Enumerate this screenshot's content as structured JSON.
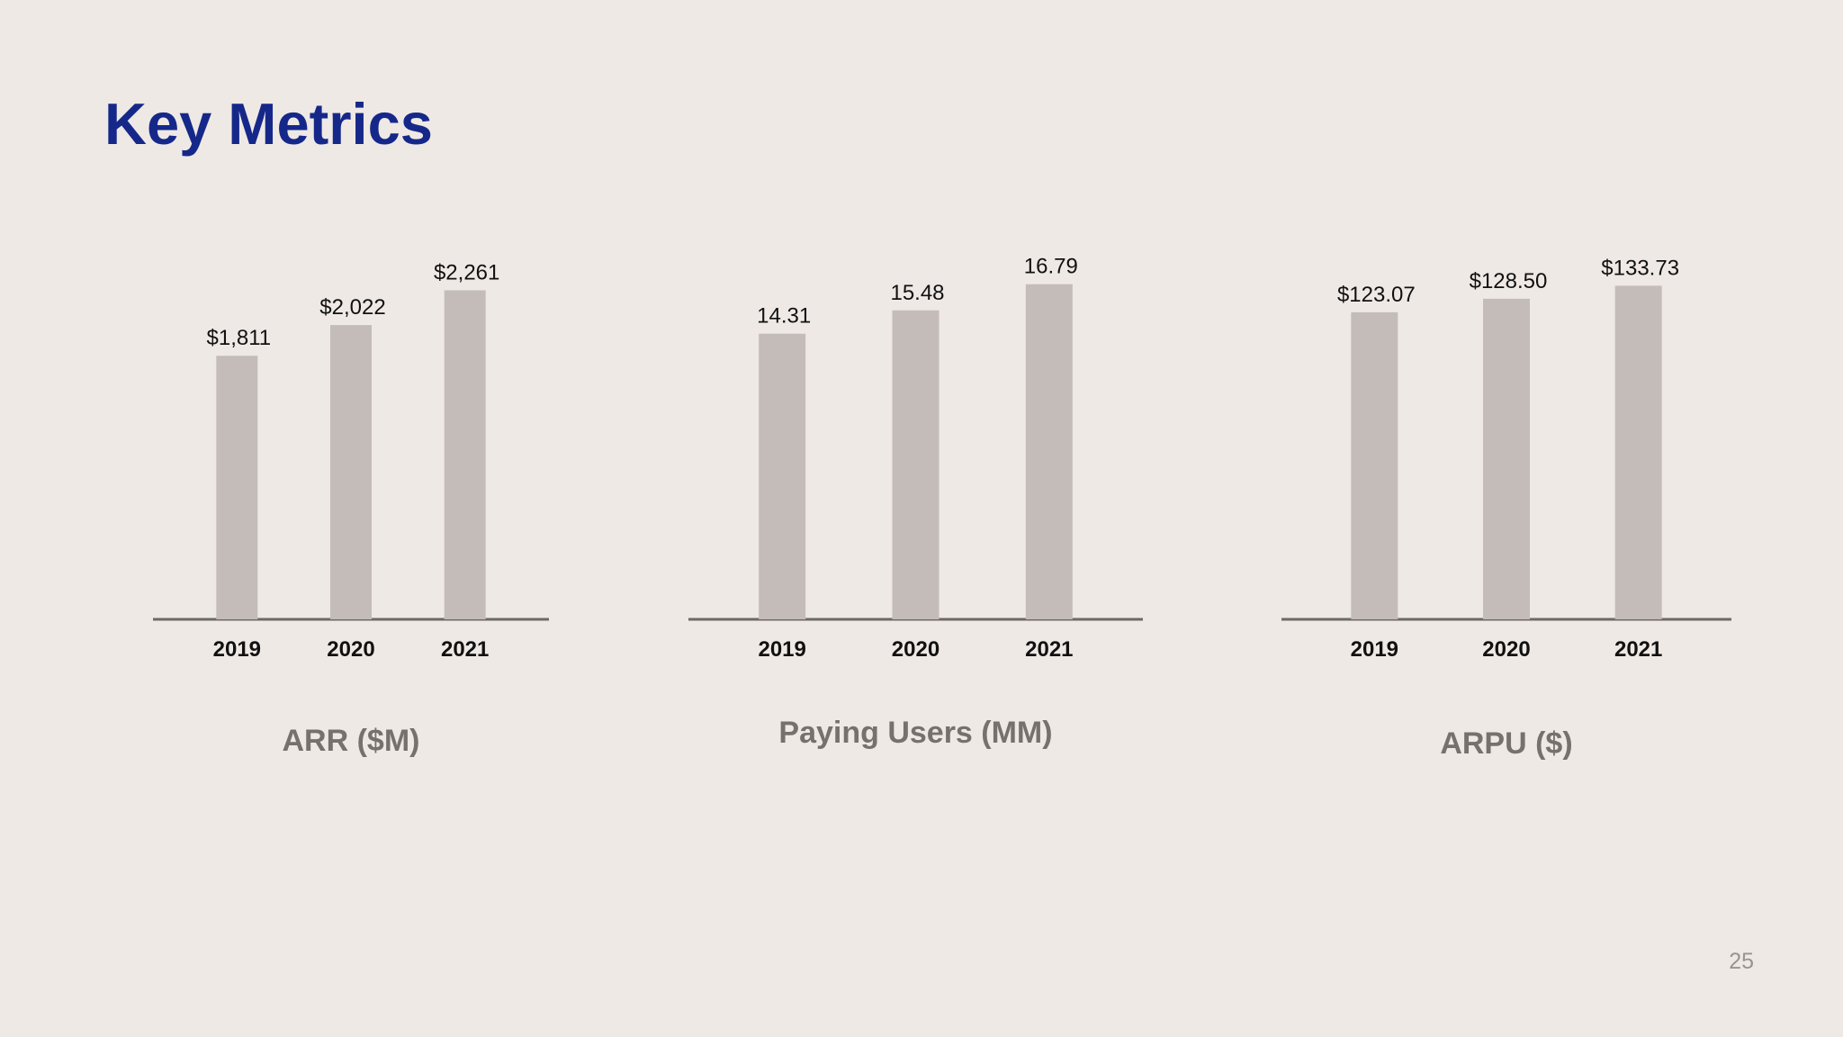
{
  "page": {
    "title": "Key Metrics",
    "page_number": "25"
  },
  "colors": {
    "title": "#15288a",
    "bar": "#c4bcb8",
    "axis": "#6f6965",
    "label": "#111111",
    "chart_title": "#77716d",
    "background": "#efe9e5"
  },
  "chart_data": [
    {
      "type": "bar",
      "title": "ARR ($M)",
      "categories": [
        "2019",
        "2020",
        "2021"
      ],
      "values": [
        1811,
        2022,
        2261
      ],
      "value_labels": [
        "$1,811",
        "$2,022",
        "$2,261"
      ],
      "xlabel": "",
      "ylabel": "",
      "ylim": [
        0,
        2400
      ],
      "grid": false,
      "legend": "none"
    },
    {
      "type": "bar",
      "title": "Paying Users (MM)",
      "categories": [
        "2019",
        "2020",
        "2021"
      ],
      "values": [
        14.31,
        15.48,
        16.79
      ],
      "value_labels": [
        "14.31",
        "15.48",
        "16.79"
      ],
      "xlabel": "",
      "ylabel": "",
      "ylim": [
        0,
        17.5
      ],
      "grid": false,
      "legend": "none"
    },
    {
      "type": "bar",
      "title": "ARPU ($)",
      "categories": [
        "2019",
        "2020",
        "2021"
      ],
      "values": [
        123.07,
        128.5,
        133.73
      ],
      "value_labels": [
        "$123.07",
        "$128.50",
        "$133.73"
      ],
      "xlabel": "",
      "ylabel": "",
      "ylim": [
        0,
        140
      ],
      "grid": false,
      "legend": "none"
    }
  ]
}
